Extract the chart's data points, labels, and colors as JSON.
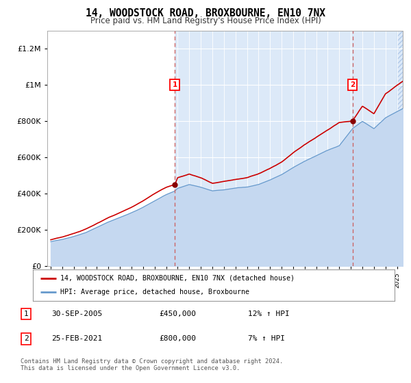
{
  "title": "14, WOODSTOCK ROAD, BROXBOURNE, EN10 7NX",
  "subtitle": "Price paid vs. HM Land Registry's House Price Index (HPI)",
  "bg_before_marker": "#ffffff",
  "bg_after_marker": "#dce9f8",
  "hpi_line_color": "#6699cc",
  "hpi_fill_color": "#c5d8f0",
  "price_color": "#cc0000",
  "dashed_line_color": "#cc6666",
  "marker1_year": 2005.75,
  "marker1_price": 450000,
  "marker2_year": 2021.15,
  "marker2_price": 800000,
  "ylim": [
    0,
    1300000
  ],
  "xlim_start": 1994.7,
  "xlim_end": 2025.5,
  "legend_label_price": "14, WOODSTOCK ROAD, BROXBOURNE, EN10 7NX (detached house)",
  "legend_label_hpi": "HPI: Average price, detached house, Broxbourne",
  "annotation1_label": "1",
  "annotation1_date": "30-SEP-2005",
  "annotation1_price": "£450,000",
  "annotation1_hpi": "12% ↑ HPI",
  "annotation2_label": "2",
  "annotation2_date": "25-FEB-2021",
  "annotation2_price": "£800,000",
  "annotation2_hpi": "7% ↑ HPI",
  "footer": "Contains HM Land Registry data © Crown copyright and database right 2024.\nThis data is licensed under the Open Government Licence v3.0.",
  "yticks": [
    0,
    200000,
    400000,
    600000,
    800000,
    1000000,
    1200000
  ],
  "hatch_start": 2025.0
}
